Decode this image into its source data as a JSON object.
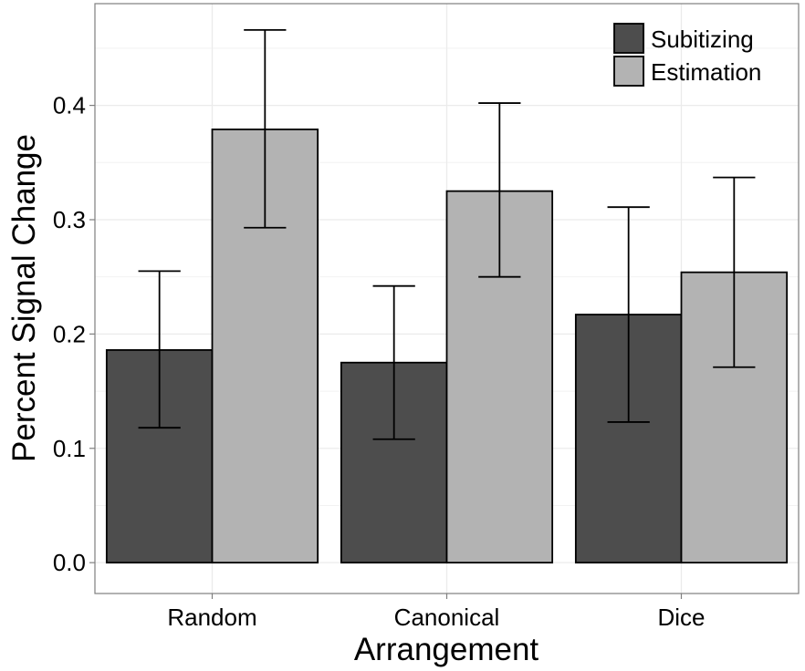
{
  "chart_data": {
    "type": "bar",
    "title": "",
    "xlabel": "Arrangement",
    "ylabel": "Percent Signal Change",
    "categories": [
      "Random",
      "Canonical",
      "Dice"
    ],
    "series": [
      {
        "name": "Subitizing",
        "color": "#4d4d4d",
        "values": [
          0.186,
          0.175,
          0.217
        ],
        "error_low": [
          0.118,
          0.108,
          0.123
        ],
        "error_high": [
          0.255,
          0.242,
          0.311
        ]
      },
      {
        "name": "Estimation",
        "color": "#b3b3b3",
        "values": [
          0.379,
          0.325,
          0.254
        ],
        "error_low": [
          0.293,
          0.25,
          0.171
        ],
        "error_high": [
          0.466,
          0.402,
          0.337
        ]
      }
    ],
    "ylim": [
      -0.027,
      0.489
    ],
    "yticks": [
      "0.0",
      "0.1",
      "0.2",
      "0.3",
      "0.4"
    ],
    "ytick_values": [
      0.0,
      0.1,
      0.2,
      0.3,
      0.4
    ],
    "grid": true,
    "legend_position": "top-right"
  }
}
